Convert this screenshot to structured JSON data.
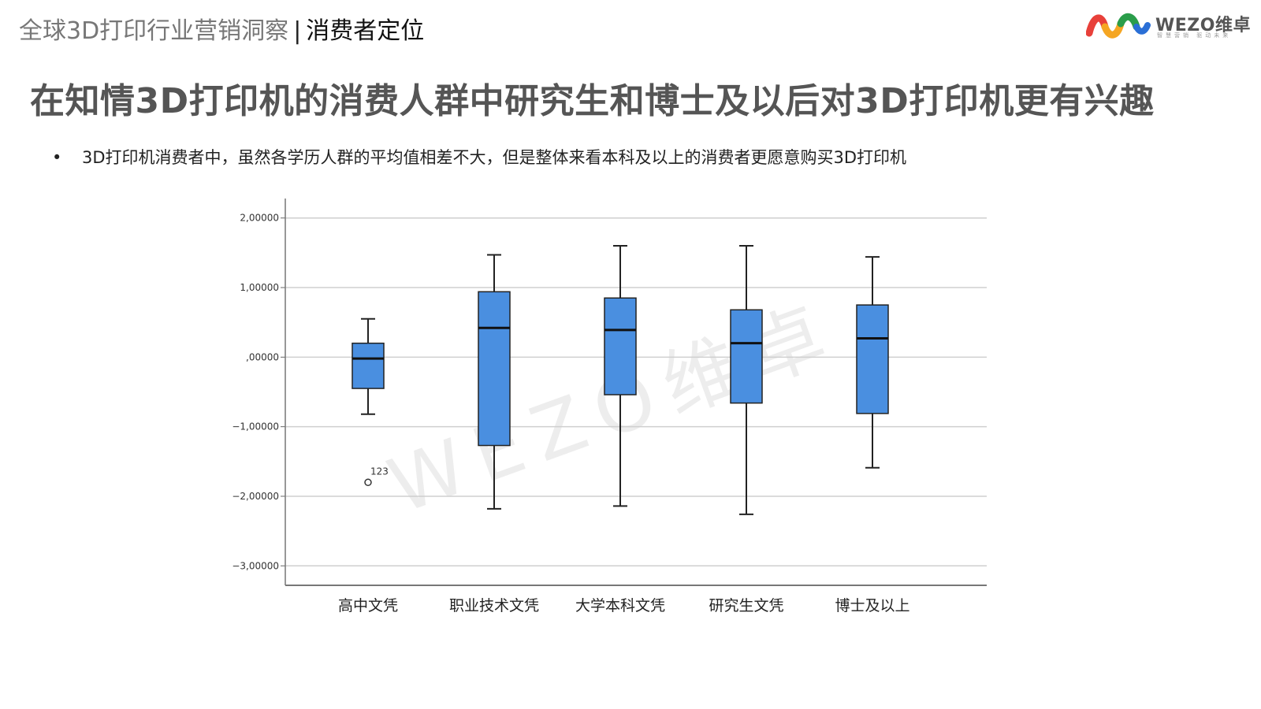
{
  "header": {
    "section": "全球3D打印行业营销洞察",
    "separator": "|",
    "topic": "消费者定位"
  },
  "logo": {
    "brand": "WEZO维卓",
    "tagline": "智慧营销 驱动未来",
    "colors": [
      "#e8403a",
      "#f5a623",
      "#2a9d4a",
      "#2a6fd6"
    ]
  },
  "title": "在知情3D打印机的消费人群中研究生和博士及以后对3D打印机更有兴趣",
  "bullet": {
    "marker": "•",
    "text": "3D打印机消费者中，虽然各学历人群的平均值相差不大，但是整体来看本科及以上的消费者更愿意购买3D打印机"
  },
  "watermark": "WEZO维卓",
  "chart_data": {
    "type": "boxplot",
    "categories": [
      "高中文凭",
      "职业技术文凭",
      "大学本科文凭",
      "研究生文凭",
      "博士及以上"
    ],
    "boxes": [
      {
        "whisker_low": -0.82,
        "q1": -0.45,
        "median": -0.02,
        "q3": 0.2,
        "whisker_high": 0.55
      },
      {
        "whisker_low": -2.18,
        "q1": -1.27,
        "median": 0.42,
        "q3": 0.94,
        "whisker_high": 1.47
      },
      {
        "whisker_low": -2.14,
        "q1": -0.54,
        "median": 0.39,
        "q3": 0.85,
        "whisker_high": 1.6
      },
      {
        "whisker_low": -2.26,
        "q1": -0.66,
        "median": 0.2,
        "q3": 0.68,
        "whisker_high": 1.6
      },
      {
        "whisker_low": -1.59,
        "q1": -0.81,
        "median": 0.27,
        "q3": 0.75,
        "whisker_high": 1.44
      }
    ],
    "outliers": [
      {
        "category_index": 0,
        "y": -1.8,
        "label": "123"
      }
    ],
    "y_ticks": [
      2,
      1,
      0,
      -1,
      -2,
      -3
    ],
    "y_tick_labels": [
      "2,00000",
      "1,00000",
      ",00000",
      "−1,00000",
      "−2,00000",
      "−3,00000"
    ],
    "ylim": [
      -3.28,
      2.28
    ],
    "grid": true,
    "box_color": "#4a8fe0"
  }
}
